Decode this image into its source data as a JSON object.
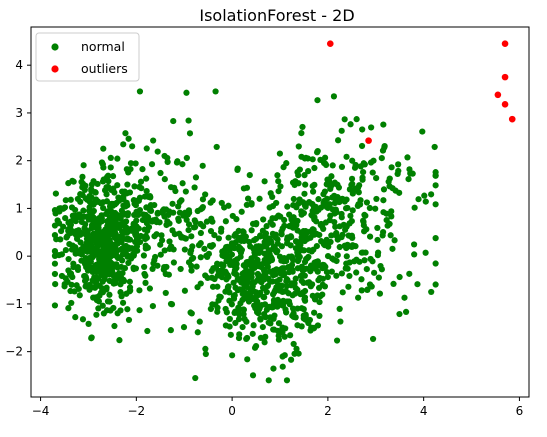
{
  "chart_data": {
    "type": "scatter",
    "title": "IsolationForest - 2D",
    "xlabel": "",
    "ylabel": "",
    "xlim": [
      -4.2,
      6.2
    ],
    "ylim": [
      -2.95,
      4.8
    ],
    "xticks": [
      -4,
      -2,
      0,
      2,
      4,
      6
    ],
    "yticks": [
      -2,
      -1,
      0,
      1,
      2,
      3,
      4
    ],
    "grid": false,
    "legend": {
      "position": "top-left",
      "entries": [
        "normal",
        "outliers"
      ]
    },
    "series": [
      {
        "name": "normal",
        "color": "#008000",
        "points": [],
        "cloud_components": [
          {
            "cx": -2.7,
            "cy": 0.2,
            "sx": 0.48,
            "sy": 0.68,
            "weight": 0.32
          },
          {
            "cx": -1.6,
            "cy": 0.8,
            "sx": 0.8,
            "sy": 0.85,
            "weight": 0.12
          },
          {
            "cx": 0.65,
            "cy": -0.4,
            "sx": 0.75,
            "sy": 0.75,
            "weight": 0.33
          },
          {
            "cx": 2.2,
            "cy": 0.6,
            "sx": 0.95,
            "sy": 0.95,
            "weight": 0.23
          }
        ],
        "point_count": 1700
      },
      {
        "name": "outliers",
        "color": "#ff0000",
        "points": [
          [
            2.05,
            4.45
          ],
          [
            2.85,
            2.42
          ],
          [
            5.7,
            4.45
          ],
          [
            5.7,
            3.75
          ],
          [
            5.55,
            3.38
          ],
          [
            5.7,
            3.18
          ],
          [
            5.85,
            2.87
          ]
        ]
      }
    ]
  }
}
